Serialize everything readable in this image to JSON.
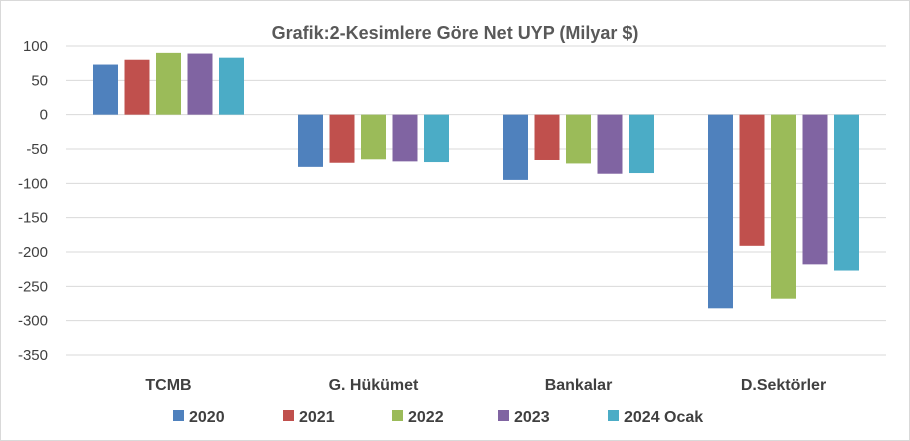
{
  "chart_data": {
    "type": "bar",
    "title": "Grafik:2-Kesimlere Göre Net UYP (Milyar $)",
    "xlabel": "",
    "ylabel": "",
    "ylim": [
      -350,
      100
    ],
    "yticks": [
      100,
      50,
      0,
      -50,
      -100,
      -150,
      -200,
      -250,
      -300,
      -350
    ],
    "grid": true,
    "legend_position": "bottom",
    "categories": [
      "TCMB",
      "G. Hükümet",
      "Bankalar",
      "D.Sektörler"
    ],
    "series": [
      {
        "name": "2020",
        "color": "#4f81bd",
        "values": [
          73,
          -76,
          -95,
          -282
        ]
      },
      {
        "name": "2021",
        "color": "#c0504d",
        "values": [
          80,
          -70,
          -66,
          -191
        ]
      },
      {
        "name": "2022",
        "color": "#9bbb59",
        "values": [
          90,
          -65,
          -71,
          -268
        ]
      },
      {
        "name": "2023",
        "color": "#8064a2",
        "values": [
          89,
          -68,
          -86,
          -218
        ]
      },
      {
        "name": "2024 Ocak",
        "color": "#4bacc6",
        "values": [
          83,
          -69,
          -85,
          -227
        ]
      }
    ]
  }
}
